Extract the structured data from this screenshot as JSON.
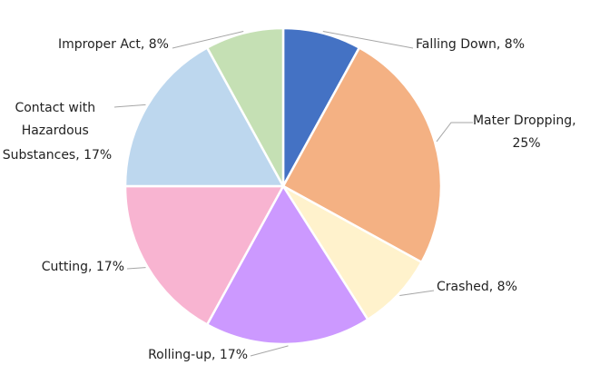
{
  "chart_data": {
    "type": "pie",
    "title": "",
    "legend": "none",
    "start_angle": "12 o'clock",
    "direction": "clockwise",
    "slices": [
      {
        "name": "Falling Down",
        "value": 8,
        "color": "#4472c4",
        "label": [
          "Falling Down, 8%"
        ]
      },
      {
        "name": "Mater Dropping",
        "value": 25,
        "color": "#f4b183",
        "label": [
          "Mater Dropping,",
          "25%"
        ]
      },
      {
        "name": "Crashed",
        "value": 8,
        "color": "#fff2cc",
        "label": [
          "Crashed, 8%"
        ]
      },
      {
        "name": "Rolling-up",
        "value": 17,
        "color": "#cc99ff",
        "label": [
          "Rolling-up, 17%"
        ]
      },
      {
        "name": "Cutting",
        "value": 17,
        "color": "#f8b4d1",
        "label": [
          "Cutting, 17%"
        ]
      },
      {
        "name": "Contact with Hazardous Substances",
        "value": 17,
        "color": "#bdd7ee",
        "label": [
          "Contact with",
          "Hazardous",
          "Substances, 17%"
        ]
      },
      {
        "name": "Improper Act",
        "value": 8,
        "color": "#c5e0b4",
        "label": [
          "Improper Act, 8%"
        ]
      }
    ]
  }
}
